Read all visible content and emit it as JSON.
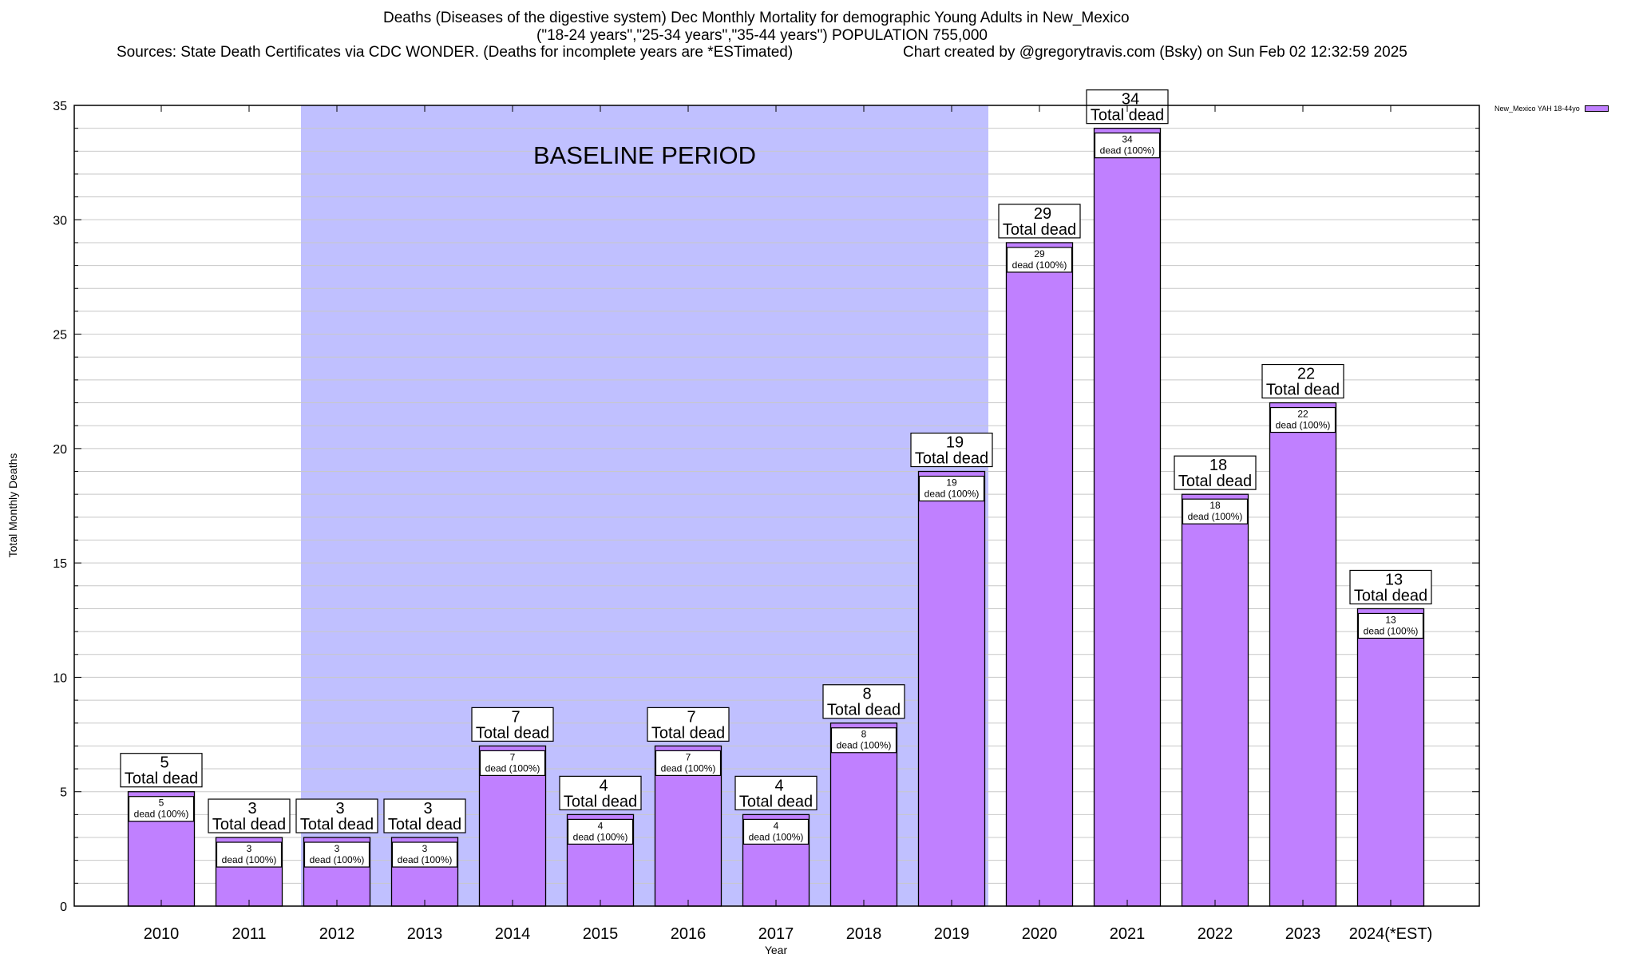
{
  "chart_data": {
    "type": "bar",
    "title": "Deaths (Diseases of the digestive system) Dec Monthly Mortality for demographic Young Adults in New_Mexico",
    "subtitle": "(\"18-24 years\",\"25-34 years\",\"35-44 years\") POPULATION 755,000",
    "sources": "Sources: State Death Certificates via CDC WONDER. (Deaths for incomplete years are *ESTimated)",
    "credit": "Chart created by @gregorytravis.com (Bsky) on Sun Feb 02 12:32:59 2025",
    "xlabel": "Year",
    "ylabel": "Total Monthly Deaths",
    "ylim": [
      0,
      35
    ],
    "yticks": [
      0,
      5,
      10,
      15,
      20,
      25,
      30,
      35
    ],
    "minor_grid_step": 1,
    "grid": true,
    "categories": [
      "2010",
      "2011",
      "2012",
      "2013",
      "2014",
      "2015",
      "2016",
      "2017",
      "2018",
      "2019",
      "2020",
      "2021",
      "2022",
      "2023",
      "2024(*EST)"
    ],
    "series": [
      {
        "name": "New_Mexico YAH 18-44yo",
        "color": "#c080ff",
        "values": [
          5,
          3,
          3,
          3,
          7,
          4,
          7,
          4,
          8,
          19,
          29,
          34,
          18,
          22,
          13
        ]
      }
    ],
    "total_label_suffix": "Total dead",
    "inner_label_suffix": "dead (100%)",
    "legend_position": "top-right",
    "baseline": {
      "label": "BASELINE PERIOD",
      "from_category": "2012",
      "to_category": "2019",
      "color": "#c0c0ff"
    },
    "colors": {
      "bar": "#c080ff",
      "baseline_shade": "#c0c0ff",
      "grid": "#c8c8c8"
    }
  }
}
